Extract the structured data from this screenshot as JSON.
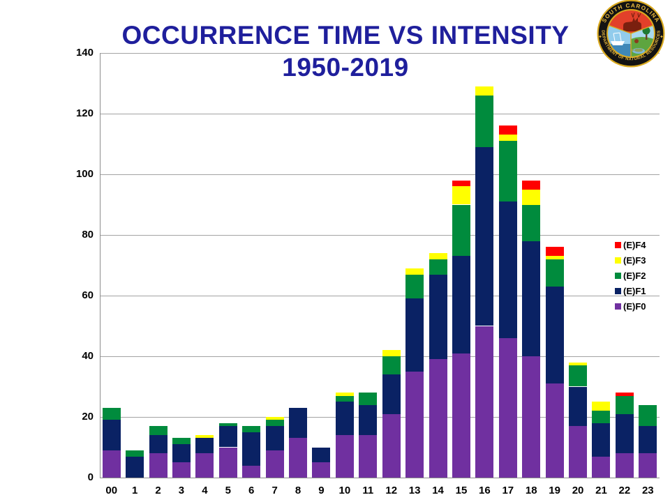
{
  "slide": {
    "title_line1": "OCCURRENCE TIME VS INTENSITY",
    "title_line2": "1950-2019",
    "title_color": "#1F1F9C",
    "background": "#FFFFFF"
  },
  "logo": {
    "top_text": "SOUTH CAROLINA",
    "bottom_text": "DEPARTMENT OF NATURAL RESOURCES",
    "star": "✦",
    "ring_color": "#111111",
    "gold_color": "#D9A91F"
  },
  "chart_data": {
    "type": "bar",
    "stacked": true,
    "title": "OCCURRENCE TIME VS INTENSITY 1950-2019",
    "xlabel": "",
    "ylabel": "",
    "ylim": [
      0,
      140
    ],
    "yticks": [
      0,
      20,
      40,
      60,
      80,
      100,
      120,
      140
    ],
    "grid": true,
    "legend_position": "right-inside",
    "legend_order_top_to_bottom": [
      "(E)F4",
      "(E)F3",
      "(E)F2",
      "(E)F1",
      "(E)F0"
    ],
    "categories": [
      "00",
      "1",
      "2",
      "3",
      "4",
      "5",
      "6",
      "7",
      "8",
      "9",
      "10",
      "11",
      "12",
      "13",
      "14",
      "15",
      "16",
      "17",
      "18",
      "19",
      "20",
      "21",
      "22",
      "23"
    ],
    "series": [
      {
        "name": "(E)F0",
        "color": "#7030A0",
        "values": [
          9,
          0,
          8,
          5,
          8,
          10,
          4,
          9,
          13,
          5,
          14,
          14,
          21,
          35,
          39,
          41,
          50,
          46,
          40,
          31,
          17,
          7,
          8,
          8
        ]
      },
      {
        "name": "(E)F1",
        "color": "#0A2264",
        "values": [
          10,
          7,
          6,
          6,
          5,
          7,
          11,
          8,
          10,
          5,
          11,
          10,
          13,
          24,
          28,
          32,
          59,
          45,
          38,
          32,
          13,
          11,
          13,
          9
        ]
      },
      {
        "name": "(E)F2",
        "color": "#008B3D",
        "values": [
          4,
          2,
          3,
          2,
          0,
          1,
          2,
          2,
          0,
          0,
          2,
          4,
          6,
          8,
          5,
          17,
          17,
          20,
          12,
          9,
          7,
          4,
          6,
          7
        ]
      },
      {
        "name": "(E)F3",
        "color": "#FFFF00",
        "values": [
          0,
          0,
          0,
          0,
          1,
          0,
          0,
          1,
          0,
          0,
          1,
          0,
          2,
          2,
          2,
          6,
          3,
          2,
          5,
          1,
          1,
          3,
          0,
          0
        ]
      },
      {
        "name": "(E)F4",
        "color": "#FF0000",
        "values": [
          0,
          0,
          0,
          0,
          0,
          0,
          0,
          0,
          0,
          0,
          0,
          0,
          0,
          0,
          0,
          2,
          0,
          3,
          3,
          3,
          0,
          0,
          1,
          0
        ]
      }
    ],
    "totals_by_hour": [
      23,
      9,
      17,
      13,
      14,
      18,
      17,
      20,
      23,
      10,
      28,
      28,
      42,
      69,
      74,
      98,
      129,
      116,
      98,
      76,
      38,
      25,
      28,
      24
    ]
  }
}
